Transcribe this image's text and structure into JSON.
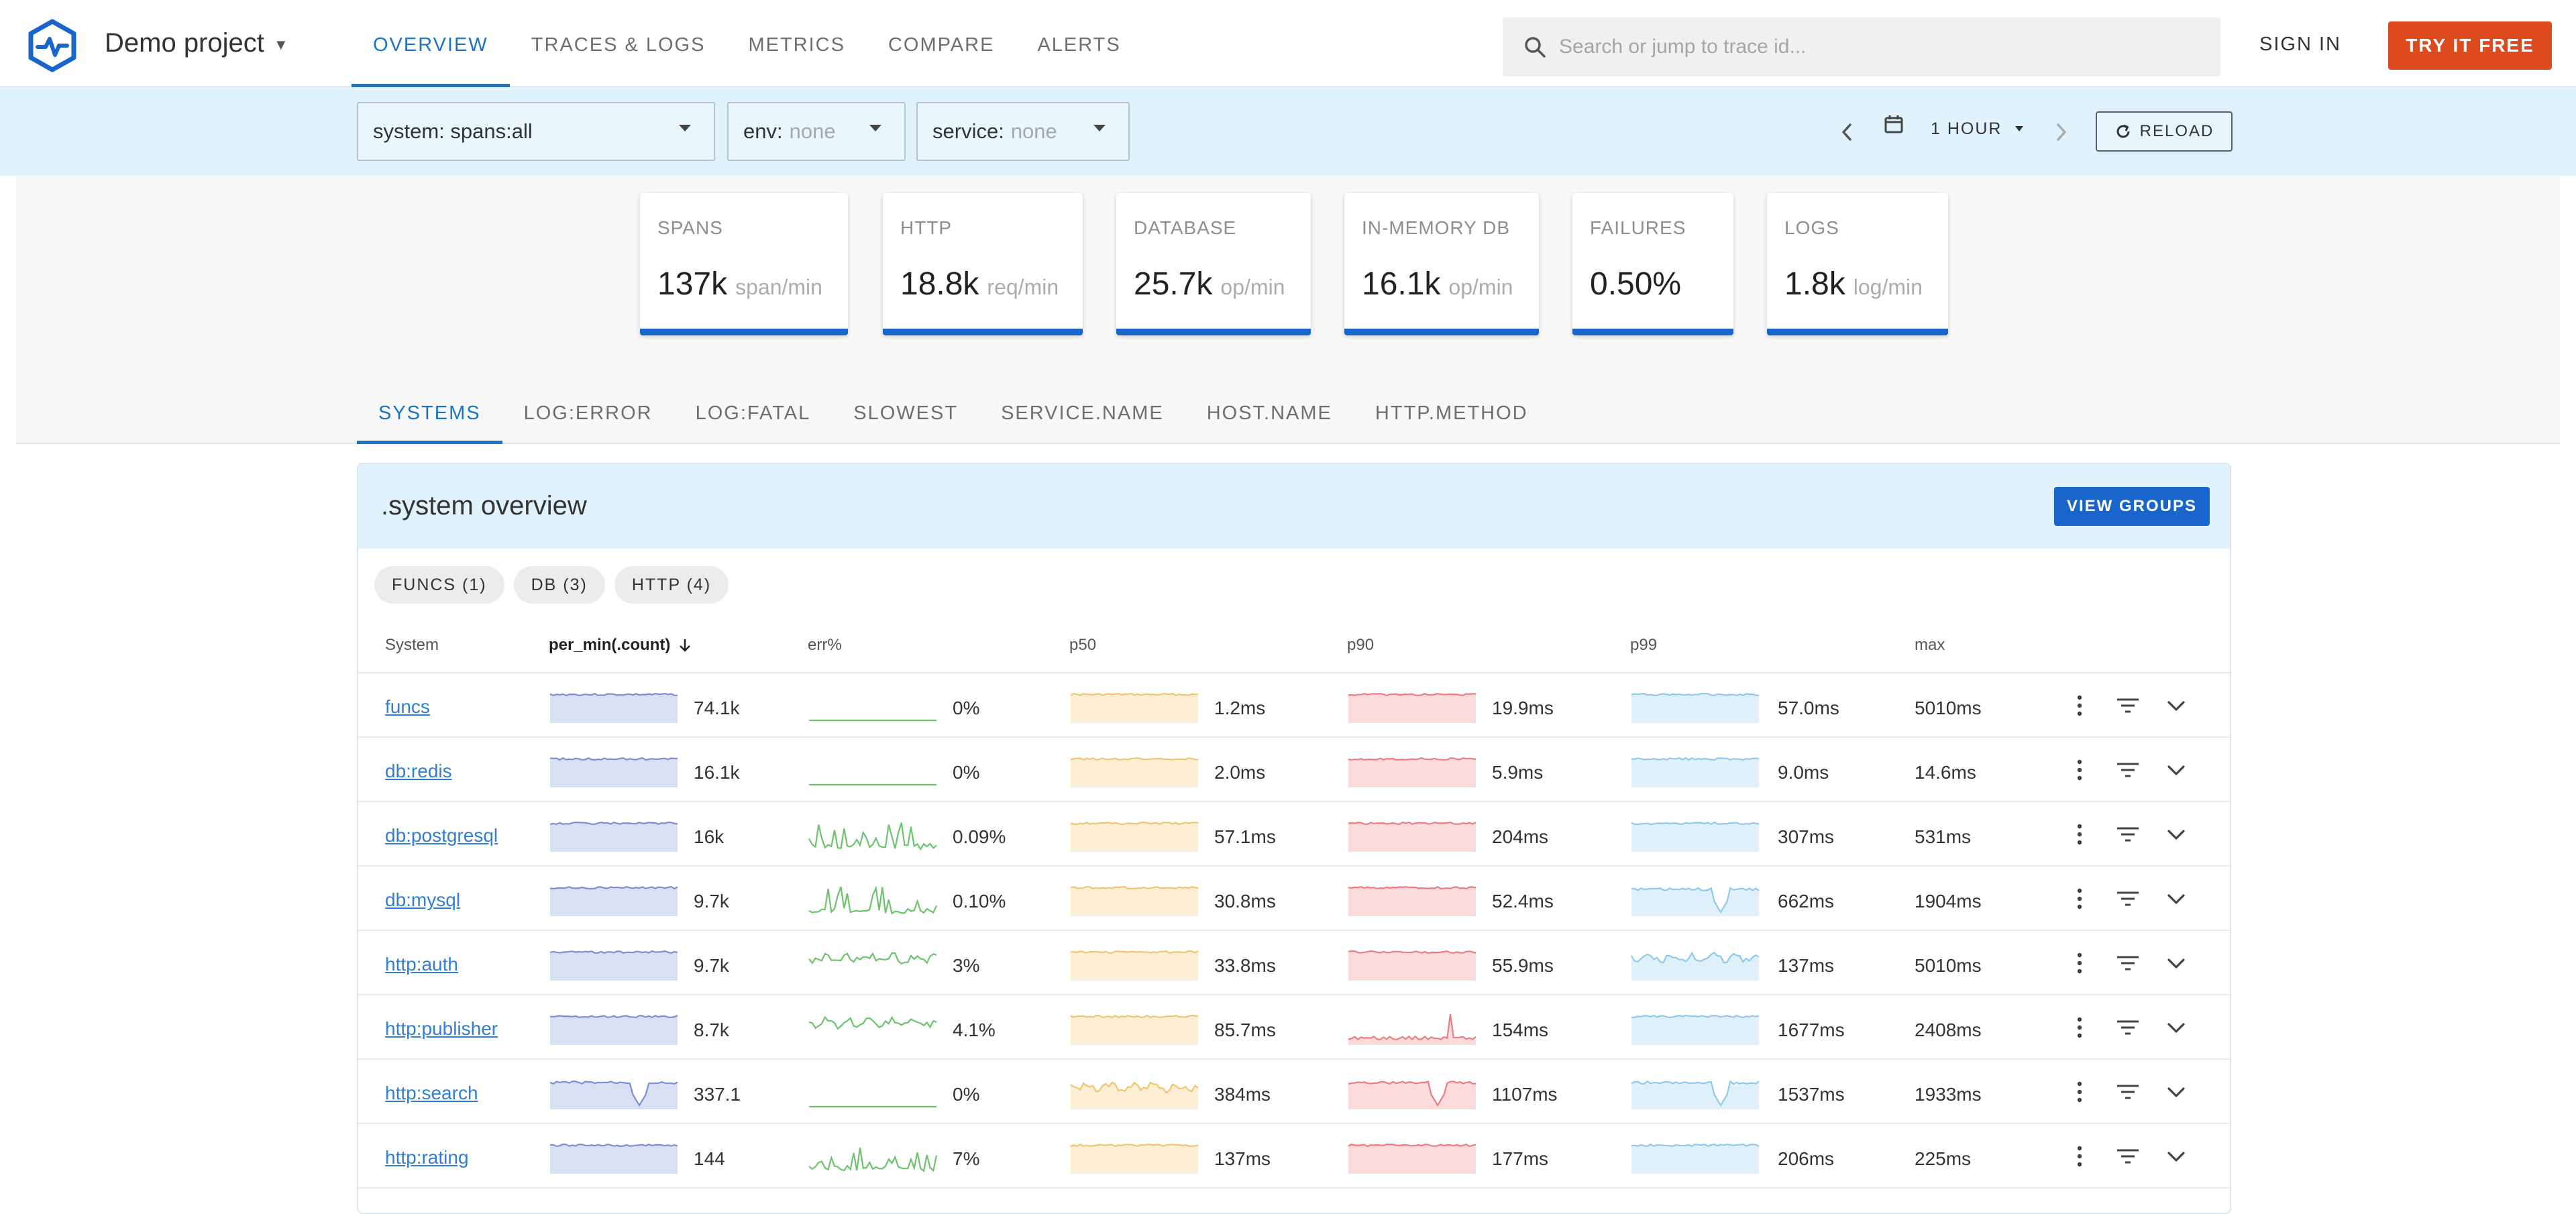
{
  "header": {
    "project": "Demo project",
    "tabs": [
      {
        "label": "OVERVIEW",
        "active": true
      },
      {
        "label": "TRACES & LOGS"
      },
      {
        "label": "METRICS"
      },
      {
        "label": "COMPARE"
      },
      {
        "label": "ALERTS"
      }
    ],
    "search_placeholder": "Search or jump to trace id...",
    "sign_in": "SIGN IN",
    "try_free": "TRY IT FREE"
  },
  "filters": {
    "system": "system: spans:all",
    "env_label": "env:",
    "env_value": "none",
    "service_label": "service:",
    "service_value": "none",
    "period": "1 HOUR",
    "reload": "RELOAD"
  },
  "stats": [
    {
      "label": "SPANS",
      "value": "137k",
      "unit": "span/min"
    },
    {
      "label": "HTTP",
      "value": "18.8k",
      "unit": "req/min"
    },
    {
      "label": "DATABASE",
      "value": "25.7k",
      "unit": "op/min"
    },
    {
      "label": "IN-MEMORY DB",
      "value": "16.1k",
      "unit": "op/min"
    },
    {
      "label": "FAILURES",
      "value": "0.50%",
      "unit": ""
    },
    {
      "label": "LOGS",
      "value": "1.8k",
      "unit": "log/min"
    }
  ],
  "subtabs": [
    "SYSTEMS",
    "LOG:ERROR",
    "LOG:FATAL",
    "SLOWEST",
    "SERVICE.NAME",
    "HOST.NAME",
    "HTTP.METHOD"
  ],
  "panel": {
    "title": ".system overview",
    "view_groups": "VIEW GROUPS",
    "chips": [
      "FUNCS (1)",
      "DB (3)",
      "HTTP (4)"
    ]
  },
  "table": {
    "columns": [
      "System",
      "per_min(.count)",
      "err%",
      "p50",
      "p90",
      "p99",
      "max"
    ],
    "rows": [
      {
        "system": "funcs",
        "rate": "74.1k",
        "err": "0%",
        "p50": "1.2ms",
        "p90": "19.9ms",
        "p99": "57.0ms",
        "max": "5010ms",
        "shape": [
          "flat",
          "line",
          "flat",
          "flat",
          "flat"
        ]
      },
      {
        "system": "db:redis",
        "rate": "16.1k",
        "err": "0%",
        "p50": "2.0ms",
        "p90": "5.9ms",
        "p99": "9.0ms",
        "max": "14.6ms",
        "shape": [
          "flat",
          "line",
          "flat",
          "flat",
          "flat"
        ]
      },
      {
        "system": "db:postgresql",
        "rate": "16k",
        "err": "0.09%",
        "p50": "57.1ms",
        "p90": "204ms",
        "p99": "307ms",
        "max": "531ms",
        "shape": [
          "flat",
          "spiky",
          "flat",
          "flat",
          "flat"
        ]
      },
      {
        "system": "db:mysql",
        "rate": "9.7k",
        "err": "0.10%",
        "p50": "30.8ms",
        "p90": "52.4ms",
        "p99": "662ms",
        "max": "1904ms",
        "shape": [
          "flat",
          "spiky",
          "flat",
          "flat",
          "dip"
        ]
      },
      {
        "system": "http:auth",
        "rate": "9.7k",
        "err": "3%",
        "p50": "33.8ms",
        "p90": "55.9ms",
        "p99": "137ms",
        "max": "5010ms",
        "shape": [
          "flat",
          "wavy",
          "flat",
          "flat",
          "wavy"
        ]
      },
      {
        "system": "http:publisher",
        "rate": "8.7k",
        "err": "4.1%",
        "p50": "85.7ms",
        "p90": "154ms",
        "p99": "1677ms",
        "max": "2408ms",
        "shape": [
          "flat",
          "wavy",
          "flat",
          "lowspike",
          "flat"
        ]
      },
      {
        "system": "http:search",
        "rate": "337.1",
        "err": "0%",
        "p50": "384ms",
        "p90": "1107ms",
        "p99": "1537ms",
        "max": "1933ms",
        "shape": [
          "dip",
          "line",
          "wavy",
          "dip",
          "dip"
        ]
      },
      {
        "system": "http:rating",
        "rate": "144",
        "err": "7%",
        "p50": "137ms",
        "p90": "177ms",
        "p99": "206ms",
        "max": "225ms",
        "shape": [
          "flat",
          "spiky",
          "flat",
          "flat",
          "flat"
        ]
      }
    ]
  },
  "colors": {
    "accent": "#1a73c9",
    "try_free": "#dc4a1e",
    "rate": "#7b8fd6",
    "err": "#6cc36c",
    "p50": "#f3c46a",
    "p90": "#ef7d7d",
    "p99": "#8fc9ec"
  },
  "icons": [
    "logo-icon",
    "search-icon",
    "calendar-icon",
    "reload-icon",
    "more-vert-icon",
    "filter-icon",
    "chevron-down-icon"
  ]
}
